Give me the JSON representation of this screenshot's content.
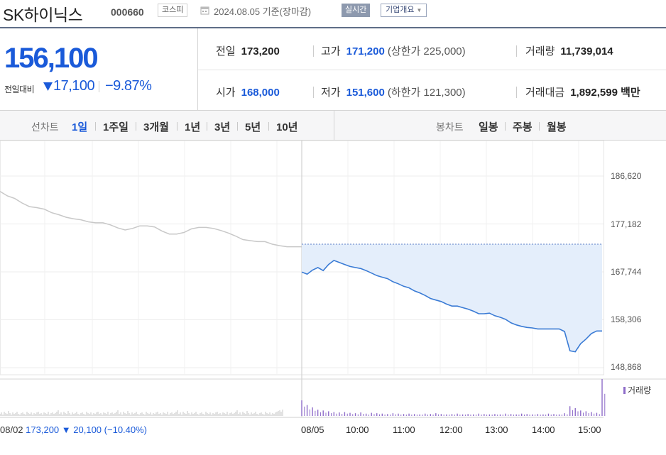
{
  "header": {
    "stock_name": "SK하이닉스",
    "stock_code": "000660",
    "market_badge": "코스피",
    "as_of": "2024.08.05  기준(장마감)",
    "realtime_label": "실시간",
    "company_label": "기업개요"
  },
  "price": {
    "current": "156,100",
    "change_label": "전일대비",
    "change_amount": "17,100",
    "change_rate": "−9.87%"
  },
  "stats": {
    "prev_close_label": "전일",
    "prev_close": "173,200",
    "high_label": "고가",
    "high": "171,200",
    "upper_limit": "(상한가 225,000)",
    "volume_label": "거래량",
    "volume": "11,739,014",
    "open_label": "시가",
    "open": "168,000",
    "low_label": "저가",
    "low": "151,600",
    "lower_limit": "(하한가 121,300)",
    "amount_label": "거래대금",
    "amount": "1,892,599",
    "amount_unit": "백만"
  },
  "tabs": {
    "line_title": "선차트",
    "periods": [
      "1일",
      "1주일",
      "3개월",
      "1년",
      "3년",
      "5년",
      "10년"
    ],
    "active_period": "1일",
    "candle_title": "봉차트",
    "candles": [
      "일봉",
      "주봉",
      "월봉"
    ]
  },
  "chart": {
    "y_ticks": [
      "186,620",
      "177,182",
      "167,744",
      "158,306",
      "148,868"
    ],
    "x_ticks": [
      "08/05",
      "10:00",
      "11:00",
      "12:00",
      "13:00",
      "14:00",
      "15:00"
    ],
    "volume_legend": "거래량",
    "prev_day": {
      "date": "08/02",
      "close": "173,200",
      "change": "▼ 20,100",
      "rate": "(−10.40%)"
    }
  },
  "colors": {
    "price_down": "#1a5ad9",
    "today_line": "#3a7bd5",
    "today_fill": "#e4eefb",
    "prev_line": "#c8c8c8",
    "volume_today": "#8e6cc9",
    "volume_prev": "#c4c4c4"
  },
  "chart_data": {
    "type": "line",
    "prev_day_series": [
      183600,
      182700,
      182200,
      181300,
      180600,
      180400,
      180100,
      179400,
      179000,
      178500,
      178200,
      178000,
      177600,
      177400,
      177400,
      177000,
      176400,
      176000,
      176300,
      176800,
      176800,
      176600,
      175800,
      175200,
      175200,
      175500,
      176200,
      176500,
      176500,
      176300,
      175900,
      175400,
      174800,
      174100,
      173900,
      173700,
      173700,
      173200,
      172900,
      172700,
      172700,
      172700
    ],
    "today_series": [
      167700,
      167300,
      168100,
      168600,
      168000,
      169200,
      170000,
      169600,
      169200,
      168800,
      168600,
      168400,
      168000,
      167500,
      167000,
      166700,
      166400,
      165800,
      165400,
      164900,
      164600,
      164000,
      163600,
      163100,
      162500,
      162200,
      161900,
      161400,
      161000,
      161000,
      160700,
      160400,
      160000,
      159500,
      159500,
      159600,
      159100,
      158800,
      158400,
      157700,
      157300,
      157000,
      156800,
      156700,
      156500,
      156500,
      156500,
      156500,
      156500,
      156000,
      152200,
      152000,
      153600,
      154500,
      155600,
      156100,
      156100
    ],
    "reference_price": 173200,
    "today_start_time": "09:00",
    "today_end_time": "15:30",
    "ylim": [
      148868,
      186620
    ],
    "volume_prev_pattern": [
      3,
      5,
      2,
      6,
      4,
      3,
      7,
      4,
      2,
      5,
      3,
      4,
      6,
      3,
      2,
      4,
      5,
      3,
      2,
      6,
      4,
      3,
      5,
      2,
      4,
      3,
      5,
      6,
      3,
      4,
      2,
      5,
      4,
      3,
      6,
      2,
      4,
      5,
      3,
      4,
      6,
      8
    ],
    "volume_today_pattern": [
      40,
      28,
      22,
      16,
      14,
      12,
      10,
      9,
      10,
      8,
      7,
      9,
      6,
      8,
      7,
      6,
      5,
      7,
      6,
      5,
      6,
      5,
      4,
      6,
      5,
      7,
      5,
      4,
      5,
      6,
      4,
      5,
      4,
      6,
      5,
      4,
      5,
      4,
      6,
      5,
      4,
      6,
      5,
      4,
      5,
      4,
      6,
      5,
      4,
      7,
      25,
      20,
      14,
      12,
      10,
      8,
      95
    ]
  }
}
